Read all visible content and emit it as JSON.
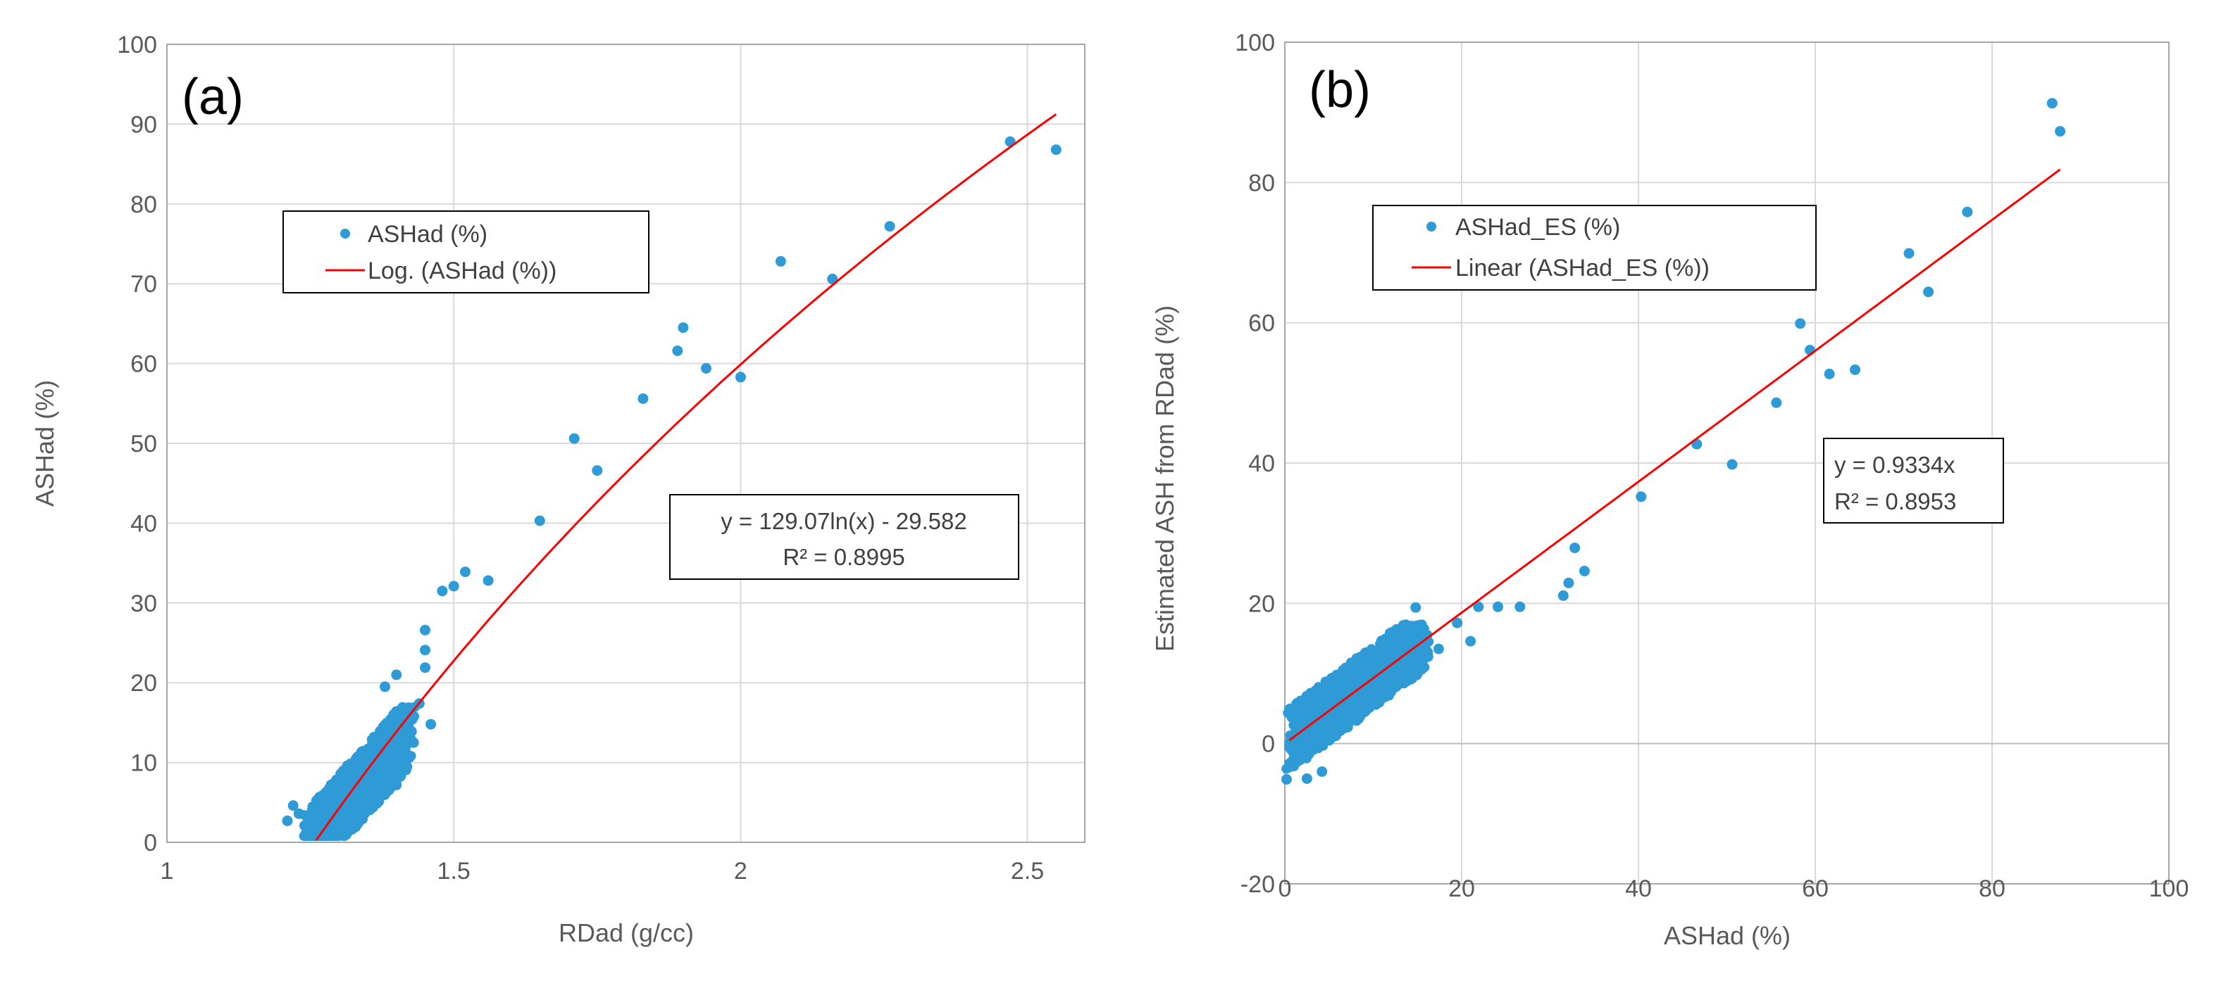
{
  "chart_data": [
    {
      "type": "scatter",
      "panel_label": "(a)",
      "xlabel": "RDad (g/cc)",
      "ylabel": "ASHad (%)",
      "xlim": [
        1,
        2.6
      ],
      "ylim": [
        0,
        100
      ],
      "xticks": [
        "1",
        "1.5",
        "2",
        "2.5"
      ],
      "xtick_values": [
        1,
        1.5,
        2,
        2.5
      ],
      "yticks": [
        "0",
        "10",
        "20",
        "30",
        "40",
        "50",
        "60",
        "70",
        "80",
        "90",
        "100"
      ],
      "ytick_values": [
        0,
        10,
        20,
        30,
        40,
        50,
        60,
        70,
        80,
        90,
        100
      ],
      "grid": true,
      "legend": [
        "ASHad (%)",
        "Log. (ASHad (%))"
      ],
      "point_color": "#2e9bd6",
      "line_color": "#ff0000",
      "trendline": {
        "type": "log",
        "a": 129.07,
        "b": -29.582,
        "x_from": 1.26,
        "x_to": 2.55
      },
      "equation_text": "y = 129.07ln(x) - 29.582",
      "r2_text": "R² = 0.8995",
      "points": [
        [
          2.47,
          87.8
        ],
        [
          2.55,
          86.8
        ],
        [
          2.26,
          77.2
        ],
        [
          2.07,
          72.8
        ],
        [
          2.16,
          70.6
        ],
        [
          1.9,
          64.5
        ],
        [
          1.89,
          61.6
        ],
        [
          1.94,
          59.4
        ],
        [
          2.0,
          58.3
        ],
        [
          1.83,
          55.6
        ],
        [
          1.71,
          50.6
        ],
        [
          1.75,
          46.6
        ],
        [
          1.65,
          40.3
        ],
        [
          1.52,
          33.9
        ],
        [
          1.56,
          32.8
        ],
        [
          1.5,
          32.1
        ],
        [
          1.48,
          31.5
        ],
        [
          1.45,
          26.6
        ],
        [
          1.45,
          24.1
        ],
        [
          1.45,
          21.9
        ],
        [
          1.4,
          21.0
        ],
        [
          1.38,
          19.5
        ],
        [
          1.44,
          17.4
        ],
        [
          1.46,
          14.8
        ],
        [
          1.43,
          12.5
        ],
        [
          1.4,
          7.2
        ],
        [
          1.21,
          2.7
        ],
        [
          1.22,
          4.6
        ],
        [
          1.23,
          3.6
        ],
        [
          1.24,
          2.1
        ]
      ]
    },
    {
      "type": "scatter",
      "panel_label": "(b)",
      "xlabel": "ASHad (%)",
      "ylabel": "Estimated ASH from RDad (%)",
      "xlim": [
        0,
        100
      ],
      "ylim": [
        -20,
        100
      ],
      "xticks": [
        "0",
        "20",
        "40",
        "60",
        "80",
        "100"
      ],
      "xtick_values": [
        0,
        20,
        40,
        60,
        80,
        100
      ],
      "yticks": [
        "-20",
        "0",
        "20",
        "40",
        "60",
        "80",
        "100"
      ],
      "ytick_values": [
        -20,
        0,
        20,
        40,
        60,
        80,
        100
      ],
      "grid": true,
      "legend": [
        "ASHad_ES (%)",
        "Linear (ASHad_ES (%))"
      ],
      "point_color": "#2e9bd6",
      "line_color": "#ff0000",
      "trendline": {
        "type": "linear",
        "slope": 0.9334,
        "x_from": 0.5,
        "x_to": 87.7
      },
      "equation_text": "y = 0.9334x",
      "r2_text": "R² = 0.8953",
      "points": [
        [
          86.8,
          91.3
        ],
        [
          87.7,
          87.3
        ],
        [
          77.2,
          75.8
        ],
        [
          70.6,
          69.9
        ],
        [
          72.8,
          64.4
        ],
        [
          58.3,
          59.9
        ],
        [
          59.4,
          56.1
        ],
        [
          61.6,
          52.7
        ],
        [
          64.5,
          53.3
        ],
        [
          55.6,
          48.6
        ],
        [
          46.6,
          42.7
        ],
        [
          50.6,
          39.8
        ],
        [
          40.3,
          35.2
        ],
        [
          32.8,
          27.9
        ],
        [
          33.9,
          24.6
        ],
        [
          32.1,
          22.9
        ],
        [
          31.5,
          21.1
        ],
        [
          26.6,
          19.5
        ],
        [
          24.1,
          19.5
        ],
        [
          21.9,
          19.5
        ],
        [
          21.0,
          14.6
        ],
        [
          19.5,
          17.2
        ],
        [
          17.4,
          13.5
        ],
        [
          14.8,
          19.4
        ],
        [
          15.5,
          16.0
        ],
        [
          16.2,
          12.4
        ],
        [
          0.2,
          -5.1
        ],
        [
          2.5,
          -5.0
        ],
        [
          4.2,
          -4.0
        ],
        [
          1.0,
          -2.2
        ]
      ]
    }
  ]
}
